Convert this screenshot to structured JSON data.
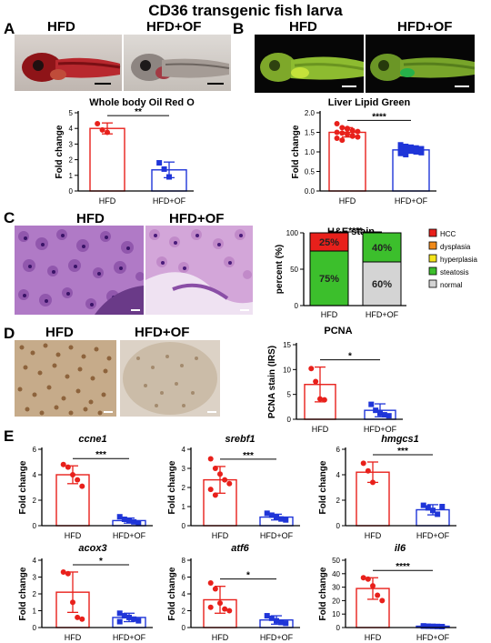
{
  "figure_title": "CD36 transgenic fish larva",
  "panels": {
    "A": {
      "letter": "A",
      "image_labels": [
        "HFD",
        "HFD+OF"
      ]
    },
    "B": {
      "letter": "B",
      "image_labels": [
        "HFD",
        "HFD+OF"
      ]
    },
    "C": {
      "letter": "C",
      "image_labels": [
        "HFD",
        "HFD+OF"
      ]
    },
    "D": {
      "letter": "D",
      "image_labels": [
        "HFD",
        "HFD+OF"
      ]
    },
    "E": {
      "letter": "E"
    }
  },
  "colors": {
    "hfd": "#e8201b",
    "hfd_of": "#1f35d8",
    "hcc": "#e8201b",
    "dysplasia": "#f08a1a",
    "hyperplasia": "#f4e41b",
    "steatosis": "#3cbf2c",
    "normal": "#d4d4d4"
  },
  "chart_data": [
    {
      "id": "oil-red",
      "type": "bar",
      "title": "Whole body Oil Red O",
      "title_italic": false,
      "ylabel": "Fold change",
      "categories": [
        "HFD",
        "HFD+OF"
      ],
      "values": [
        4.0,
        1.35
      ],
      "errors": [
        0.35,
        0.5
      ],
      "points": [
        [
          4.3,
          3.9,
          3.75
        ],
        [
          1.8,
          1.4,
          0.9
        ]
      ],
      "ylim": [
        0,
        5
      ],
      "yticks": [
        "0",
        "1",
        "2",
        "3",
        "4",
        "5"
      ],
      "significance": "**"
    },
    {
      "id": "liver-lipid",
      "type": "bar",
      "title": "Liver Lipid Green",
      "title_italic": false,
      "ylabel": "Fold change",
      "categories": [
        "HFD",
        "HFD+OF"
      ],
      "values": [
        1.5,
        1.05
      ],
      "errors": [
        0.12,
        0.07
      ],
      "points": [
        [
          1.72,
          1.62,
          1.58,
          1.55,
          1.52,
          1.5,
          1.48,
          1.45,
          1.42,
          1.38,
          1.35,
          1.3,
          1.6,
          1.4
        ],
        [
          1.18,
          1.14,
          1.12,
          1.1,
          1.08,
          1.06,
          1.04,
          1.02,
          1.0,
          0.98,
          0.96,
          0.93,
          1.1,
          1.0
        ]
      ],
      "ylim": [
        0,
        2.0
      ],
      "yticks": [
        "0.0",
        "0.5",
        "1.0",
        "1.5",
        "2.0"
      ],
      "significance": "****"
    },
    {
      "id": "he-stain",
      "type": "stacked-bar",
      "title": "H&E stain",
      "ylabel": "percent (%)",
      "categories": [
        "HFD",
        "HFD+OF"
      ],
      "series": [
        {
          "name": "HCC",
          "values": [
            25,
            0
          ]
        },
        {
          "name": "dysplasia",
          "values": [
            0,
            0
          ]
        },
        {
          "name": "hyperplasia",
          "values": [
            0,
            0
          ]
        },
        {
          "name": "steatosis",
          "values": [
            75,
            40
          ]
        },
        {
          "name": "normal",
          "values": [
            0,
            60
          ]
        }
      ],
      "segment_labels": [
        [
          {
            "series": "steatosis",
            "text": "75%"
          },
          {
            "series": "HCC",
            "text": "25%"
          }
        ],
        [
          {
            "series": "normal",
            "text": "60%"
          },
          {
            "series": "steatosis",
            "text": "40%"
          }
        ]
      ],
      "ylim": [
        0,
        100
      ],
      "yticks": [
        "0",
        "50",
        "100"
      ],
      "significance": "****",
      "legend": "right"
    },
    {
      "id": "pcna",
      "type": "bar",
      "title": "PCNA",
      "title_italic": false,
      "ylabel": "PCNA stain (IRS)",
      "categories": [
        "HFD",
        "HFD+OF"
      ],
      "values": [
        7.0,
        1.8
      ],
      "errors": [
        3.5,
        1.3
      ],
      "points": [
        [
          10.2,
          7.6,
          4.1,
          3.9
        ],
        [
          3.0,
          1.8,
          1.2,
          0.9,
          0.7
        ]
      ],
      "ylim": [
        0,
        15
      ],
      "yticks": [
        "0",
        "5",
        "10",
        "15"
      ],
      "significance": "*"
    },
    {
      "id": "ccne1",
      "type": "bar",
      "title": "ccne1",
      "title_italic": true,
      "ylabel": "Fold change",
      "categories": [
        "HFD",
        "HFD+OF"
      ],
      "values": [
        4.0,
        0.4
      ],
      "errors": [
        0.7,
        0.2
      ],
      "points": [
        [
          4.8,
          4.6,
          4.0,
          3.6,
          3.1
        ],
        [
          0.7,
          0.5,
          0.4,
          0.3,
          0.2
        ]
      ],
      "ylim": [
        0,
        6
      ],
      "yticks": [
        "0",
        "2",
        "4",
        "6"
      ],
      "significance": "***"
    },
    {
      "id": "srebf1",
      "type": "bar",
      "title": "srebf1",
      "title_italic": true,
      "ylabel": "Fold change",
      "categories": [
        "HFD",
        "HFD+OF"
      ],
      "values": [
        2.4,
        0.45
      ],
      "errors": [
        0.7,
        0.15
      ],
      "points": [
        [
          3.5,
          3.0,
          2.7,
          2.4,
          2.2,
          1.9,
          1.6
        ],
        [
          0.65,
          0.55,
          0.45,
          0.35,
          0.3
        ]
      ],
      "ylim": [
        0,
        4
      ],
      "yticks": [
        "0",
        "1",
        "2",
        "3",
        "4"
      ],
      "significance": "***"
    },
    {
      "id": "hmgcs1",
      "type": "bar",
      "title": "hmgcs1",
      "title_italic": true,
      "ylabel": "Fold change",
      "categories": [
        "HFD",
        "HFD+OF"
      ],
      "values": [
        4.2,
        1.25
      ],
      "errors": [
        0.8,
        0.4
      ],
      "points": [
        [
          4.9,
          4.3,
          3.4
        ],
        [
          1.6,
          1.4,
          1.2,
          0.9,
          1.5
        ]
      ],
      "ylim": [
        0,
        6
      ],
      "yticks": [
        "0",
        "2",
        "4",
        "6"
      ],
      "significance": "***"
    },
    {
      "id": "acox3",
      "type": "bar",
      "title": "acox3",
      "title_italic": true,
      "ylabel": "Fold change",
      "categories": [
        "HFD",
        "HFD+OF"
      ],
      "values": [
        2.1,
        0.6
      ],
      "errors": [
        1.2,
        0.25
      ],
      "points": [
        [
          3.3,
          3.2,
          1.5,
          0.6,
          0.5
        ],
        [
          0.85,
          0.7,
          0.6,
          0.5,
          0.4,
          0.35
        ]
      ],
      "ylim": [
        0,
        4
      ],
      "yticks": [
        "0",
        "1",
        "2",
        "3",
        "4"
      ],
      "significance": "*"
    },
    {
      "id": "atf6",
      "type": "bar",
      "title": "atf6",
      "title_italic": true,
      "ylabel": "Fold change",
      "categories": [
        "HFD",
        "HFD+OF"
      ],
      "values": [
        3.3,
        0.9
      ],
      "errors": [
        1.6,
        0.5
      ],
      "points": [
        [
          5.3,
          4.6,
          2.9,
          2.2,
          2.0,
          2.4
        ],
        [
          1.4,
          1.1,
          0.8,
          0.6,
          0.5
        ]
      ],
      "ylim": [
        0,
        8
      ],
      "yticks": [
        "0",
        "2",
        "4",
        "6",
        "8"
      ],
      "significance": "*"
    },
    {
      "id": "il6",
      "type": "bar",
      "title": "il6",
      "title_italic": true,
      "ylabel": "Fold change",
      "categories": [
        "HFD",
        "HFD+OF"
      ],
      "values": [
        29,
        1.0
      ],
      "errors": [
        8,
        0.5
      ],
      "points": [
        [
          37,
          36,
          31,
          24,
          20
        ],
        [
          1.2,
          1.0,
          0.9,
          0.8,
          0.7,
          1.1
        ]
      ],
      "ylim": [
        0,
        50
      ],
      "yticks": [
        "0",
        "10",
        "20",
        "30",
        "40",
        "50"
      ],
      "significance": "****"
    }
  ]
}
